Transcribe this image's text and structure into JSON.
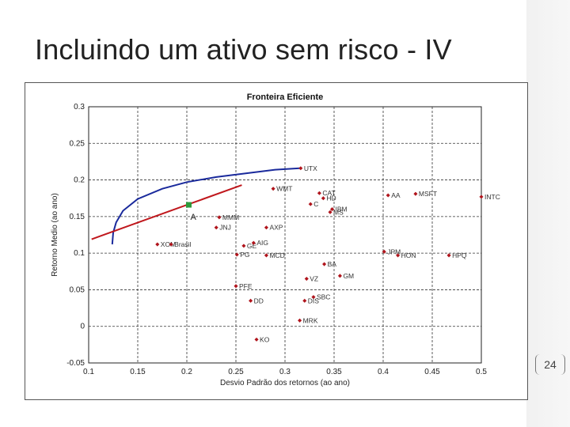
{
  "slide": {
    "title": "Incluindo um ativo sem risco - IV",
    "page_number": "24"
  },
  "colors": {
    "frontier": "#1a2a9c",
    "cml": "#c0181d",
    "assets": "#b0141c",
    "tangency_point": "#2e9a3c",
    "grid": "#333333",
    "sidebar": "#f3f3f3"
  },
  "chart_data": {
    "type": "scatter",
    "title": "Fronteira Eficiente",
    "xlabel": "Desvio Padrão dos retornos (ao ano)",
    "ylabel": "Retorno Medio (ao ano)",
    "xlim": [
      0.1,
      0.5
    ],
    "ylim": [
      -0.05,
      0.3
    ],
    "xticks": [
      "0.1",
      "0.15",
      "0.2",
      "0.25",
      "0.3",
      "0.35",
      "0.4",
      "0.45",
      "0.5"
    ],
    "yticks": [
      "-0.05",
      "0",
      "0.05",
      "0.1",
      "0.15",
      "0.2",
      "0.25",
      "0.3"
    ],
    "grid": true,
    "assets": [
      {
        "label": "UTX",
        "x": 0.316,
        "y": 0.216
      },
      {
        "label": "WMT",
        "x": 0.288,
        "y": 0.188
      },
      {
        "label": "CAT",
        "x": 0.335,
        "y": 0.182
      },
      {
        "label": "HD",
        "x": 0.339,
        "y": 0.175
      },
      {
        "label": "C",
        "x": 0.326,
        "y": 0.167
      },
      {
        "label": "IBM",
        "x": 0.348,
        "y": 0.16
      },
      {
        "label": "MS",
        "x": 0.346,
        "y": 0.156
      },
      {
        "label": "AA",
        "x": 0.405,
        "y": 0.179
      },
      {
        "label": "MSFT",
        "x": 0.433,
        "y": 0.181
      },
      {
        "label": "INTC",
        "x": 0.5,
        "y": 0.177
      },
      {
        "label": "MMM",
        "x": 0.233,
        "y": 0.149
      },
      {
        "label": "JNJ",
        "x": 0.23,
        "y": 0.135
      },
      {
        "label": "AXP",
        "x": 0.281,
        "y": 0.135
      },
      {
        "label": "XOM",
        "x": 0.17,
        "y": 0.112
      },
      {
        "label": "Brasil",
        "x": 0.184,
        "y": 0.112
      },
      {
        "label": "GE",
        "x": 0.258,
        "y": 0.11
      },
      {
        "label": "AIG",
        "x": 0.268,
        "y": 0.114
      },
      {
        "label": "PG",
        "x": 0.251,
        "y": 0.098
      },
      {
        "label": "MCD",
        "x": 0.281,
        "y": 0.097
      },
      {
        "label": "JPM",
        "x": 0.401,
        "y": 0.102
      },
      {
        "label": "HON",
        "x": 0.415,
        "y": 0.097
      },
      {
        "label": "HPQ",
        "x": 0.467,
        "y": 0.097
      },
      {
        "label": "BA",
        "x": 0.34,
        "y": 0.085
      },
      {
        "label": "GM",
        "x": 0.356,
        "y": 0.069
      },
      {
        "label": "VZ",
        "x": 0.322,
        "y": 0.065
      },
      {
        "label": "PFE",
        "x": 0.25,
        "y": 0.055
      },
      {
        "label": "SBC",
        "x": 0.329,
        "y": 0.04
      },
      {
        "label": "DIS",
        "x": 0.32,
        "y": 0.035
      },
      {
        "label": "DD",
        "x": 0.265,
        "y": 0.035
      },
      {
        "label": "MRK",
        "x": 0.315,
        "y": 0.008
      },
      {
        "label": "KO",
        "x": 0.271,
        "y": -0.018
      }
    ],
    "frontier_curve": [
      [
        0.124,
        0.112
      ],
      [
        0.125,
        0.128
      ],
      [
        0.128,
        0.142
      ],
      [
        0.135,
        0.158
      ],
      [
        0.15,
        0.174
      ],
      [
        0.175,
        0.188
      ],
      [
        0.2,
        0.197
      ],
      [
        0.23,
        0.204
      ],
      [
        0.26,
        0.209
      ],
      [
        0.29,
        0.214
      ],
      [
        0.315,
        0.216
      ]
    ],
    "capital_market_line": [
      [
        0.103,
        0.119
      ],
      [
        0.256,
        0.193
      ]
    ],
    "tangency_point": {
      "label": "A",
      "x": 0.202,
      "y": 0.166
    }
  }
}
